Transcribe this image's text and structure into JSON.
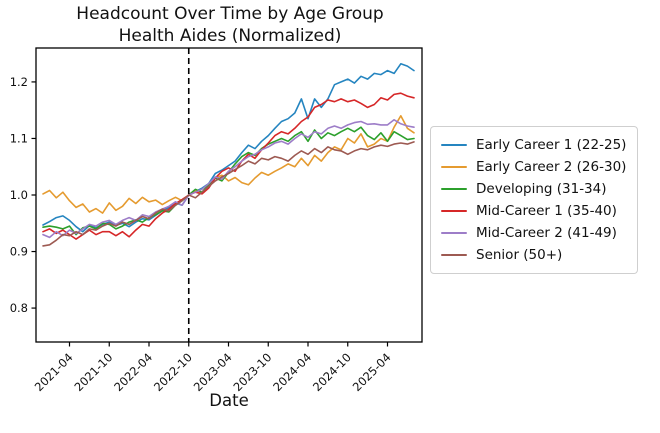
{
  "title": {
    "line1": "Headcount Over Time by Age Group",
    "line2": "Health Aides (Normalized)"
  },
  "chart_data": {
    "type": "line",
    "title": "Headcount Over Time by Age Group — Health Aides (Normalized)",
    "xlabel": "Date",
    "ylabel": "",
    "grid": false,
    "legend_position": "center-right-outside",
    "ylim": [
      0.74,
      1.26
    ],
    "yticks": [
      "0.8",
      "0.9",
      "1.0",
      "1.1",
      "1.2"
    ],
    "xtick_labels": [
      "2021-04",
      "2021-10",
      "2022-04",
      "2022-10",
      "2023-04",
      "2023-10",
      "2024-04",
      "2024-10",
      "2025-04"
    ],
    "vline": {
      "x": "2022-10",
      "style": "dashed",
      "color": "#000000",
      "meaning": "normalization point (value = 1.0)"
    },
    "x": [
      "2020-12",
      "2021-01",
      "2021-02",
      "2021-03",
      "2021-04",
      "2021-05",
      "2021-06",
      "2021-07",
      "2021-08",
      "2021-09",
      "2021-10",
      "2021-11",
      "2021-12",
      "2022-01",
      "2022-02",
      "2022-03",
      "2022-04",
      "2022-05",
      "2022-06",
      "2022-07",
      "2022-08",
      "2022-09",
      "2022-10",
      "2022-11",
      "2022-12",
      "2023-01",
      "2023-02",
      "2023-03",
      "2023-04",
      "2023-05",
      "2023-06",
      "2023-07",
      "2023-08",
      "2023-09",
      "2023-10",
      "2023-11",
      "2023-12",
      "2024-01",
      "2024-02",
      "2024-03",
      "2024-04",
      "2024-05",
      "2024-06",
      "2024-07",
      "2024-08",
      "2024-09",
      "2024-10",
      "2024-11",
      "2024-12",
      "2025-01",
      "2025-02",
      "2025-03",
      "2025-04",
      "2025-05",
      "2025-06",
      "2025-07",
      "2025-08"
    ],
    "series": [
      {
        "name": "Early Career 1 (22-25)",
        "color": "#2585c0",
        "values": [
          0.947,
          0.953,
          0.96,
          0.963,
          0.955,
          0.944,
          0.935,
          0.946,
          0.942,
          0.948,
          0.952,
          0.946,
          0.95,
          0.944,
          0.952,
          0.958,
          0.956,
          0.964,
          0.972,
          0.978,
          0.986,
          0.982,
          1.0,
          1.006,
          1.012,
          1.02,
          1.038,
          1.044,
          1.052,
          1.06,
          1.075,
          1.088,
          1.082,
          1.095,
          1.105,
          1.118,
          1.13,
          1.135,
          1.145,
          1.17,
          1.135,
          1.17,
          1.155,
          1.17,
          1.195,
          1.2,
          1.205,
          1.198,
          1.21,
          1.205,
          1.215,
          1.213,
          1.22,
          1.215,
          1.232,
          1.228,
          1.22
        ]
      },
      {
        "name": "Early Career 2 (26-30)",
        "color": "#e59b30",
        "values": [
          1.002,
          1.008,
          0.995,
          1.005,
          0.99,
          0.978,
          0.984,
          0.97,
          0.976,
          0.968,
          0.986,
          0.973,
          0.98,
          0.994,
          0.985,
          0.996,
          0.988,
          0.991,
          0.983,
          0.99,
          0.996,
          0.99,
          1.0,
          1.008,
          1.004,
          1.015,
          1.03,
          1.035,
          1.025,
          1.031,
          1.022,
          1.018,
          1.03,
          1.04,
          1.035,
          1.042,
          1.048,
          1.055,
          1.05,
          1.065,
          1.052,
          1.07,
          1.06,
          1.075,
          1.085,
          1.08,
          1.1,
          1.092,
          1.108,
          1.085,
          1.09,
          1.1,
          1.095,
          1.12,
          1.14,
          1.118,
          1.11
        ]
      },
      {
        "name": "Developing (31-34)",
        "color": "#2ca02c",
        "values": [
          0.943,
          0.945,
          0.943,
          0.94,
          0.945,
          0.93,
          0.942,
          0.945,
          0.94,
          0.95,
          0.948,
          0.94,
          0.945,
          0.952,
          0.956,
          0.952,
          0.96,
          0.965,
          0.972,
          0.97,
          0.982,
          0.99,
          1.0,
          1.01,
          1.005,
          1.018,
          1.03,
          1.025,
          1.04,
          1.055,
          1.068,
          1.075,
          1.07,
          1.082,
          1.09,
          1.095,
          1.1,
          1.095,
          1.105,
          1.112,
          1.095,
          1.115,
          1.1,
          1.11,
          1.105,
          1.112,
          1.118,
          1.112,
          1.12,
          1.105,
          1.098,
          1.11,
          1.095,
          1.112,
          1.105,
          1.098,
          1.1
        ]
      },
      {
        "name": "Mid-Career 1 (35-40)",
        "color": "#d62728",
        "values": [
          0.935,
          0.94,
          0.932,
          0.938,
          0.93,
          0.922,
          0.93,
          0.938,
          0.93,
          0.935,
          0.935,
          0.928,
          0.935,
          0.926,
          0.938,
          0.948,
          0.945,
          0.958,
          0.968,
          0.975,
          0.985,
          0.992,
          1.0,
          1.005,
          1.002,
          1.012,
          1.03,
          1.042,
          1.048,
          1.042,
          1.06,
          1.072,
          1.065,
          1.08,
          1.092,
          1.105,
          1.112,
          1.108,
          1.118,
          1.13,
          1.138,
          1.155,
          1.16,
          1.168,
          1.165,
          1.17,
          1.165,
          1.168,
          1.162,
          1.155,
          1.16,
          1.172,
          1.168,
          1.178,
          1.18,
          1.175,
          1.172
        ]
      },
      {
        "name": "Mid-Career 2 (41-49)",
        "color": "#9d7dc8",
        "values": [
          0.93,
          0.925,
          0.935,
          0.928,
          0.938,
          0.932,
          0.94,
          0.948,
          0.945,
          0.952,
          0.955,
          0.948,
          0.955,
          0.96,
          0.955,
          0.965,
          0.962,
          0.97,
          0.975,
          0.98,
          0.988,
          0.982,
          1.0,
          1.005,
          1.01,
          1.02,
          1.032,
          1.028,
          1.042,
          1.05,
          1.06,
          1.068,
          1.072,
          1.08,
          1.085,
          1.092,
          1.095,
          1.09,
          1.1,
          1.108,
          1.102,
          1.112,
          1.108,
          1.118,
          1.122,
          1.118,
          1.124,
          1.128,
          1.13,
          1.125,
          1.126,
          1.124,
          1.124,
          1.133,
          1.126,
          1.122,
          1.12
        ]
      },
      {
        "name": "Senior (50+)",
        "color": "#9d5a52",
        "values": [
          0.91,
          0.912,
          0.92,
          0.93,
          0.928,
          0.935,
          0.93,
          0.94,
          0.938,
          0.945,
          0.95,
          0.945,
          0.952,
          0.948,
          0.955,
          0.962,
          0.958,
          0.968,
          0.975,
          0.972,
          0.982,
          0.99,
          1.0,
          0.995,
          1.005,
          1.015,
          1.025,
          1.032,
          1.038,
          1.045,
          1.052,
          1.06,
          1.055,
          1.065,
          1.062,
          1.068,
          1.065,
          1.06,
          1.07,
          1.078,
          1.072,
          1.082,
          1.075,
          1.085,
          1.08,
          1.078,
          1.072,
          1.078,
          1.082,
          1.08,
          1.085,
          1.088,
          1.086,
          1.09,
          1.092,
          1.09,
          1.094
        ]
      }
    ]
  }
}
